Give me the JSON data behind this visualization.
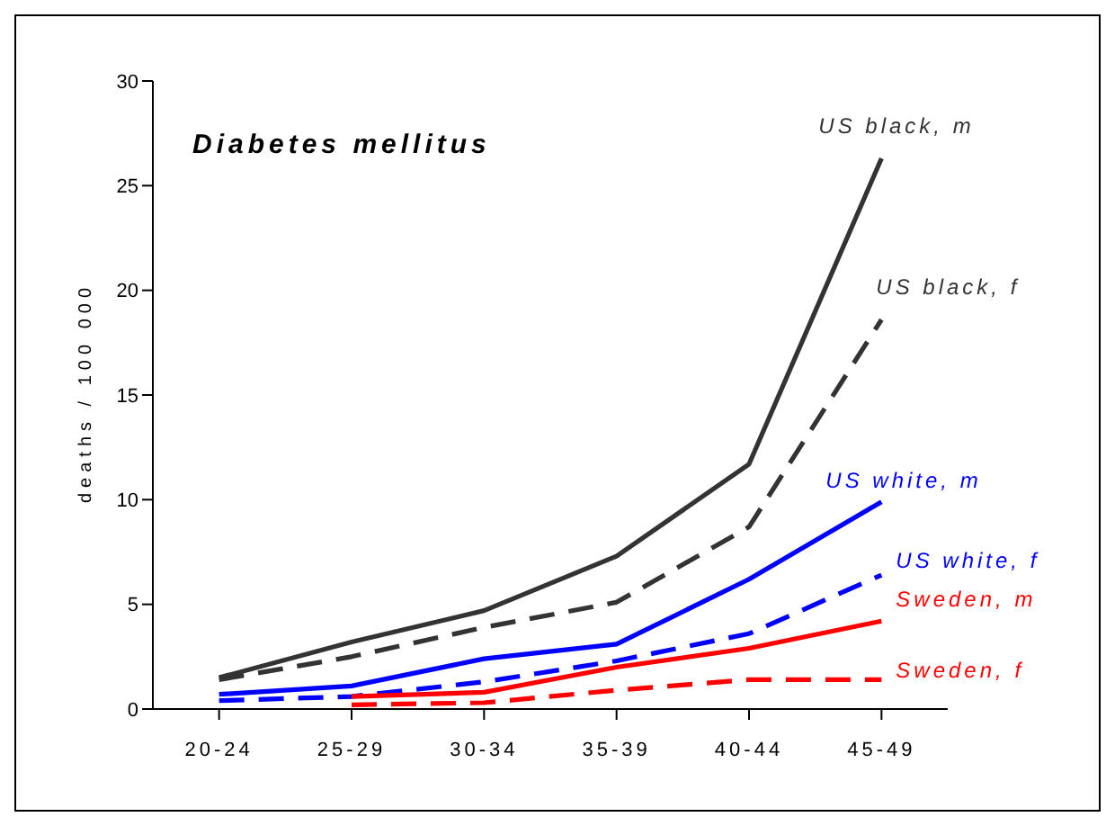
{
  "chart_data": {
    "type": "line",
    "title": "Diabetes mellitus",
    "ylabel": "deaths / 100 000",
    "categories": [
      "20-24",
      "25-29",
      "30-34",
      "35-39",
      "40-44",
      "45-49"
    ],
    "ylim": [
      0,
      30
    ],
    "yticks": [
      0,
      5,
      10,
      15,
      20,
      25,
      30
    ],
    "grid": false,
    "legend": false,
    "marker": "none",
    "series": [
      {
        "name": "US black, m",
        "color": "#333333",
        "line_style": "solid",
        "values": [
          1.5,
          3.2,
          4.7,
          7.3,
          11.7,
          26.3
        ]
      },
      {
        "name": "US black, f",
        "color": "#333333",
        "line_style": "dashed",
        "values": [
          1.4,
          2.5,
          3.9,
          5.1,
          8.7,
          18.6
        ]
      },
      {
        "name": "US white, m",
        "color": "#0000ff",
        "line_style": "solid",
        "values": [
          0.7,
          1.1,
          2.4,
          3.1,
          6.2,
          9.9
        ]
      },
      {
        "name": "US white, f",
        "color": "#0000ff",
        "line_style": "dashed",
        "values": [
          0.4,
          0.6,
          1.3,
          2.3,
          3.6,
          6.4
        ]
      },
      {
        "name": "Sweden, m",
        "color": "#ff0000",
        "line_style": "solid",
        "values": [
          null,
          0.6,
          0.8,
          2.0,
          2.9,
          4.2
        ]
      },
      {
        "name": "Sweden, f",
        "color": "#ff0000",
        "line_style": "dashed",
        "values": [
          null,
          0.2,
          0.3,
          0.9,
          1.4,
          1.4
        ]
      }
    ]
  }
}
